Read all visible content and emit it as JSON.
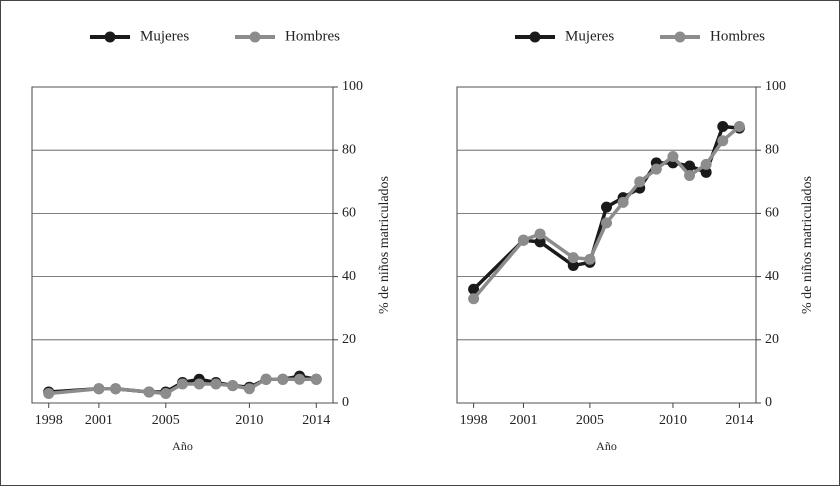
{
  "chart_data": [
    {
      "type": "line",
      "x_label": "Año",
      "y_label": "% de niños matriculados",
      "legend": "top",
      "grid": true,
      "x": [
        1998,
        2001,
        2002,
        2004,
        2005,
        2006,
        2007,
        2008,
        2009,
        2010,
        2011,
        2012,
        2013,
        2014
      ],
      "xlim": [
        1997,
        2015
      ],
      "xticks": [
        1998,
        2001,
        2005,
        2010,
        2014
      ],
      "ylim": [
        0,
        100
      ],
      "yticks": [
        0,
        20,
        40,
        60,
        80,
        100
      ],
      "series": [
        {
          "name": "Mujeres",
          "color": "#1a1a1a",
          "values": [
            3.5,
            4.5,
            4.5,
            3.5,
            3.5,
            6.5,
            7.5,
            6.5,
            5.5,
            5,
            7.5,
            7.5,
            8.5,
            7.5
          ]
        },
        {
          "name": "Hombres",
          "color": "#8c8c8c",
          "values": [
            3,
            4.5,
            4.5,
            3.5,
            3,
            6,
            6,
            6,
            5.5,
            4.5,
            7.5,
            7.5,
            7.5,
            7.5
          ]
        }
      ]
    },
    {
      "type": "line",
      "x_label": "Año",
      "y_label": "% de niños matriculados",
      "legend": "top",
      "grid": true,
      "x": [
        1998,
        2001,
        2002,
        2004,
        2005,
        2006,
        2007,
        2008,
        2009,
        2010,
        2011,
        2012,
        2013,
        2014
      ],
      "xlim": [
        1997,
        2015
      ],
      "xticks": [
        1998,
        2001,
        2005,
        2010,
        2014
      ],
      "ylim": [
        0,
        100
      ],
      "yticks": [
        0,
        20,
        40,
        60,
        80,
        100
      ],
      "series": [
        {
          "name": "Mujeres",
          "color": "#1a1a1a",
          "values": [
            36,
            51.5,
            51,
            43.5,
            44.5,
            62,
            65,
            68,
            76,
            76,
            75,
            73,
            87.5,
            87
          ]
        },
        {
          "name": "Hombres",
          "color": "#8c8c8c",
          "values": [
            33,
            51.5,
            53.5,
            46,
            45.5,
            57,
            63.5,
            70,
            74,
            78,
            72,
            75.5,
            83,
            87.5
          ]
        }
      ]
    }
  ]
}
